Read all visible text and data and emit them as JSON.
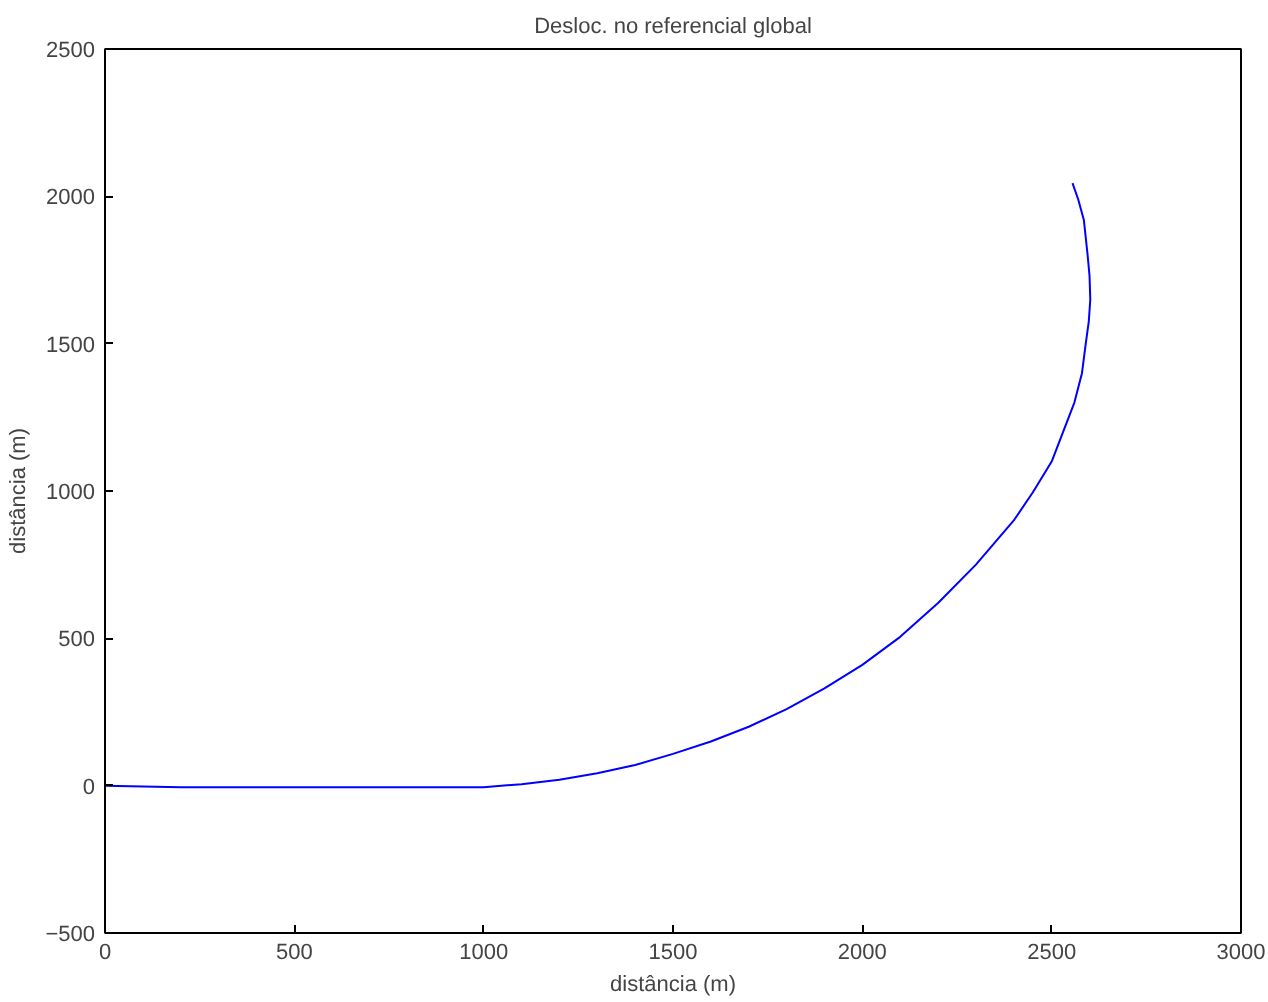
{
  "chart_data": {
    "type": "line",
    "title": "Desloc. no referencial global",
    "xlabel": "distância (m)",
    "ylabel": "distância (m)",
    "x": [
      0,
      200,
      1000,
      1100,
      1200,
      1300,
      1400,
      1500,
      1600,
      1700,
      1800,
      1900,
      2000,
      2100,
      2200,
      2300,
      2400,
      2450,
      2500,
      2530,
      2560,
      2580,
      2590,
      2598,
      2602,
      2600,
      2595,
      2585,
      2570,
      2555
    ],
    "series": [
      {
        "color": "#0000ff",
        "values": [
          0,
          -5,
          -5,
          5,
          20,
          42,
          70,
          108,
          150,
          200,
          260,
          330,
          410,
          505,
          620,
          750,
          900,
          995,
          1100,
          1200,
          1300,
          1400,
          1500,
          1575,
          1650,
          1730,
          1800,
          1920,
          1990,
          2045
        ]
      }
    ],
    "xlim": [
      0,
      3000
    ],
    "ylim": [
      -500,
      2500
    ],
    "xticks": [
      0,
      500,
      1000,
      1500,
      2000,
      2500,
      3000
    ],
    "yticks": [
      -500,
      0,
      500,
      1000,
      1500,
      2000,
      2500
    ],
    "grid": false,
    "marker": "none",
    "line_style": "solid"
  }
}
